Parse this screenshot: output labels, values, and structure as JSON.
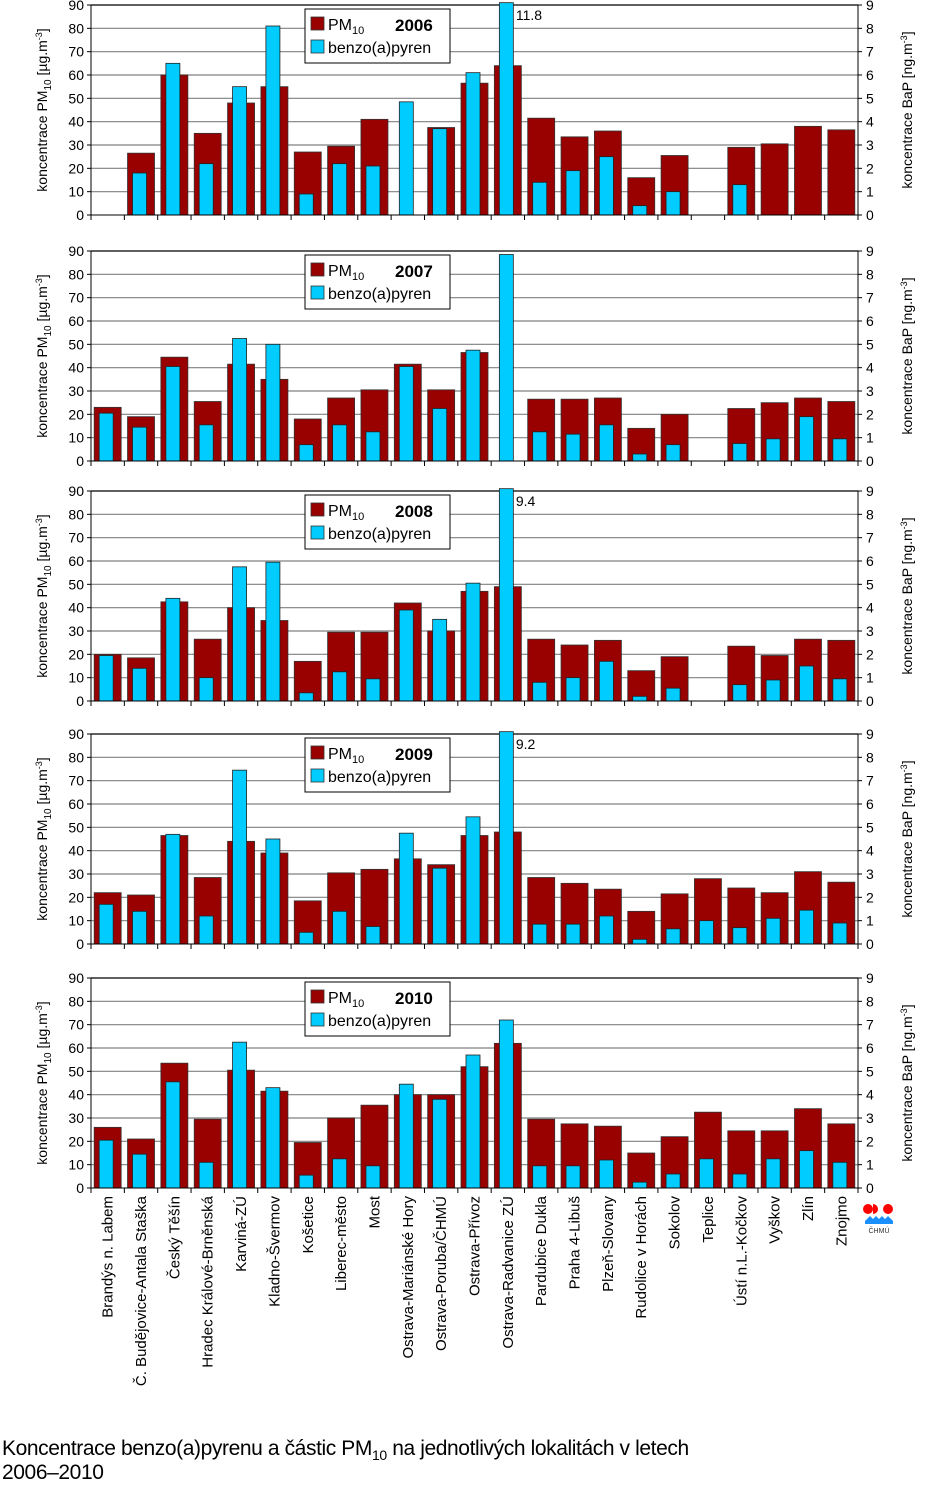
{
  "chart_data": {
    "type": "bar",
    "title": "Koncentrace benzo(a)pyrenu a částic PM10 na jednotlivých lokalitách v letech 2006–2010",
    "categories": [
      "Brandýs n. Labem",
      "Č. Budějovice-Antala Staška",
      "Český Těšín",
      "Hradec Králové-Brněnská",
      "Karviná-ZÚ",
      "Kladno-Švermov",
      "Košetice",
      "Liberec-město",
      "Most",
      "Ostrava-Mariánské Hory",
      "Ostrava-Poruba/ČHMÚ",
      "Ostrava-Přívoz",
      "Ostrava-Radvanice ZÚ",
      "Pardubice Dukla",
      "Praha 4-Libuš",
      "Plzeň-Slovany",
      "Rudolice v Horách",
      "Sokolov",
      "Teplice",
      "Ústí n.L.-Kočkov",
      "Vyškov",
      "Zlín",
      "Znojmo"
    ],
    "left_axis": {
      "label": "koncentrace PM10 [µg.m-3]",
      "label_main": "koncentrace PM",
      "label_sub": "10",
      "label_unit": " [µg.m",
      "label_sup": "-3",
      "label_end": "]",
      "ylim": [
        0,
        90
      ],
      "ticks": [
        "0",
        "10",
        "20",
        "30",
        "40",
        "50",
        "60",
        "70",
        "80",
        "90"
      ]
    },
    "right_axis": {
      "label": "koncentrace BaP [ng.m-3]",
      "label_main": "koncentrace BaP [ng.m",
      "label_sup": "-3",
      "label_end": "]",
      "ylim": [
        0,
        9
      ],
      "ticks": [
        "0",
        "1",
        "2",
        "3",
        "4",
        "5",
        "6",
        "7",
        "8",
        "9"
      ]
    },
    "legend": {
      "placement": "top-center",
      "pm_label": "PM",
      "pm_sub": "10",
      "bap_label": "benzo(a)pyren"
    },
    "grid": true,
    "colors": {
      "pm10": "#990000",
      "bap": "#00CCFF",
      "grid": "#808080",
      "axis": "#000000"
    },
    "panels": [
      {
        "year": "2006",
        "series": [
          {
            "name": "PM10",
            "axis": "left",
            "values": [
              null,
              26.5,
              60,
              35,
              48,
              55,
              27,
              29.5,
              41,
              null,
              37.5,
              56.5,
              64,
              41.5,
              33.5,
              36,
              16,
              25.5,
              null,
              29,
              30.5,
              38,
              36.5
            ]
          },
          {
            "name": "benzo(a)pyren",
            "axis": "right",
            "values": [
              null,
              1.8,
              6.5,
              2.2,
              5.5,
              8.1,
              0.9,
              2.2,
              2.1,
              4.85,
              3.7,
              6.1,
              11.8,
              1.4,
              1.9,
              2.5,
              0.4,
              1.0,
              null,
              1.3,
              null,
              null,
              null
            ]
          }
        ],
        "annotations": [
          {
            "category": "Ostrava-Radvanice ZÚ",
            "series": "benzo(a)pyren",
            "text": "11.8",
            "note": "bar truncated at axis max"
          }
        ]
      },
      {
        "year": "2007",
        "series": [
          {
            "name": "PM10",
            "axis": "left",
            "values": [
              23,
              19,
              44.5,
              25.5,
              41.5,
              35,
              18,
              27,
              30.5,
              41.5,
              30.5,
              46.5,
              null,
              26.5,
              26.5,
              27,
              14,
              20,
              null,
              22.5,
              25,
              27,
              25.5
            ]
          },
          {
            "name": "benzo(a)pyren",
            "axis": "right",
            "values": [
              2.05,
              1.45,
              4.05,
              1.55,
              5.25,
              5.0,
              0.7,
              1.55,
              1.25,
              4.05,
              2.25,
              4.75,
              8.85,
              1.25,
              1.15,
              1.55,
              0.3,
              0.7,
              null,
              0.75,
              0.95,
              1.9,
              0.95
            ]
          }
        ],
        "annotations": []
      },
      {
        "year": "2008",
        "series": [
          {
            "name": "PM10",
            "axis": "left",
            "values": [
              20,
              18.5,
              42.5,
              26.5,
              40,
              34.5,
              17,
              29.5,
              29.5,
              42,
              30,
              47,
              49,
              26.5,
              24,
              26,
              13,
              19,
              null,
              23.5,
              19.5,
              26.5,
              26
            ]
          },
          {
            "name": "benzo(a)pyren",
            "axis": "right",
            "values": [
              1.95,
              1.4,
              4.4,
              1.0,
              5.75,
              5.95,
              0.35,
              1.25,
              0.95,
              3.9,
              3.5,
              5.05,
              9.4,
              0.8,
              1.0,
              1.7,
              0.2,
              0.55,
              null,
              0.7,
              0.9,
              1.5,
              0.95
            ]
          }
        ],
        "annotations": [
          {
            "category": "Ostrava-Radvanice ZÚ",
            "series": "benzo(a)pyren",
            "text": "9.4",
            "note": "bar truncated at axis max"
          }
        ]
      },
      {
        "year": "2009",
        "series": [
          {
            "name": "PM10",
            "axis": "left",
            "values": [
              22,
              21,
              46.5,
              28.5,
              44,
              39,
              18.5,
              30.5,
              32,
              36.5,
              34,
              46.5,
              48,
              28.5,
              26,
              23.5,
              14,
              21.5,
              28,
              24,
              22,
              31,
              26.5
            ]
          },
          {
            "name": "benzo(a)pyren",
            "axis": "right",
            "values": [
              1.7,
              1.4,
              4.7,
              1.2,
              7.45,
              4.5,
              0.5,
              1.4,
              0.75,
              4.75,
              3.25,
              5.45,
              9.2,
              0.85,
              0.85,
              1.2,
              0.2,
              0.65,
              1.0,
              0.7,
              1.1,
              1.45,
              0.9
            ]
          }
        ],
        "annotations": [
          {
            "category": "Ostrava-Radvanice ZÚ",
            "series": "benzo(a)pyren",
            "text": "9.2",
            "note": "bar truncated at axis max"
          }
        ]
      },
      {
        "year": "2010",
        "series": [
          {
            "name": "PM10",
            "axis": "left",
            "values": [
              26,
              21,
              53.5,
              29.5,
              50.5,
              41.5,
              19.5,
              30,
              35.5,
              40,
              40,
              52,
              62,
              29.5,
              27.5,
              26.5,
              15,
              22,
              32.5,
              24.5,
              24.5,
              34,
              27.5
            ]
          },
          {
            "name": "benzo(a)pyren",
            "axis": "right",
            "values": [
              2.05,
              1.45,
              4.55,
              1.1,
              6.25,
              4.3,
              0.55,
              1.25,
              0.95,
              4.45,
              3.8,
              5.7,
              7.2,
              0.95,
              0.95,
              1.2,
              0.25,
              0.6,
              1.25,
              0.6,
              1.25,
              1.6,
              1.1
            ]
          }
        ],
        "annotations": []
      }
    ]
  },
  "caption": {
    "line1_a": "Koncentrace benzo(a)pyrenu a částic PM",
    "line1_sub": "10",
    "line1_b": " na jednotlivých lokalitách v letech",
    "line2": "2006–2010"
  },
  "logo": {
    "text": "ČHMÚ"
  }
}
